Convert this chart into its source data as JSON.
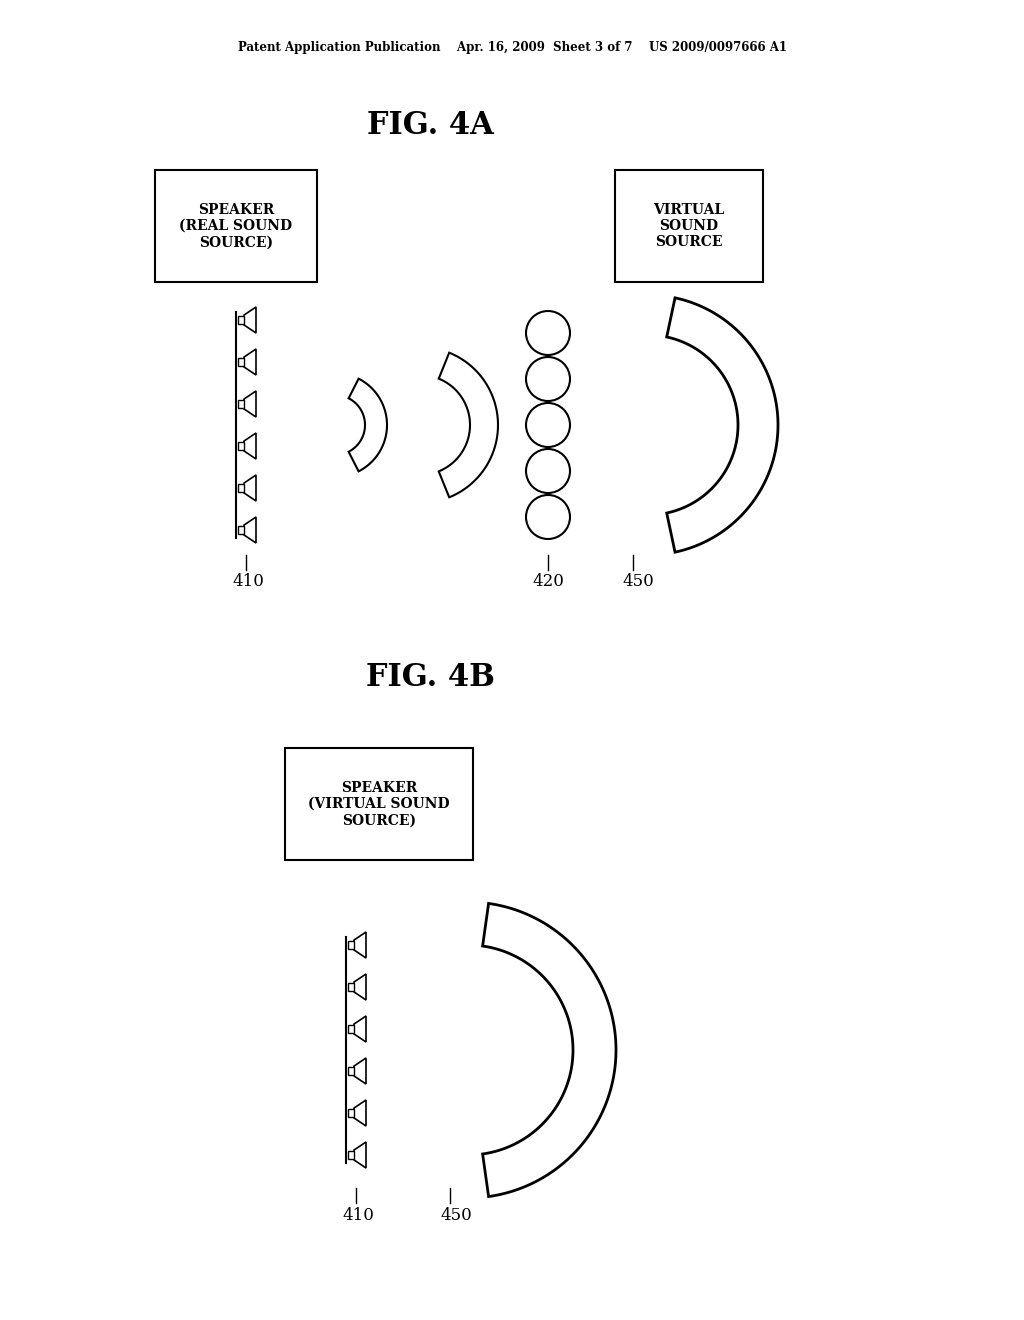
{
  "bg_color": "#ffffff",
  "header_text": "Patent Application Publication    Apr. 16, 2009  Sheet 3 of 7    US 2009/0097666 A1",
  "fig4a_title": "FIG. 4A",
  "fig4b_title": "FIG. 4B",
  "box1_text": "SPEAKER\n(REAL SOUND\nSOURCE)",
  "box2_text": "VIRTUAL\nSOUND\nSOURCE",
  "box3_text": "SPEAKER\n(VIRTUAL SOUND\nSOURCE)",
  "label_410_4a": "410",
  "label_420_4a": "420",
  "label_450_4a": "450",
  "label_410_4b": "410",
  "label_450_4b": "450"
}
